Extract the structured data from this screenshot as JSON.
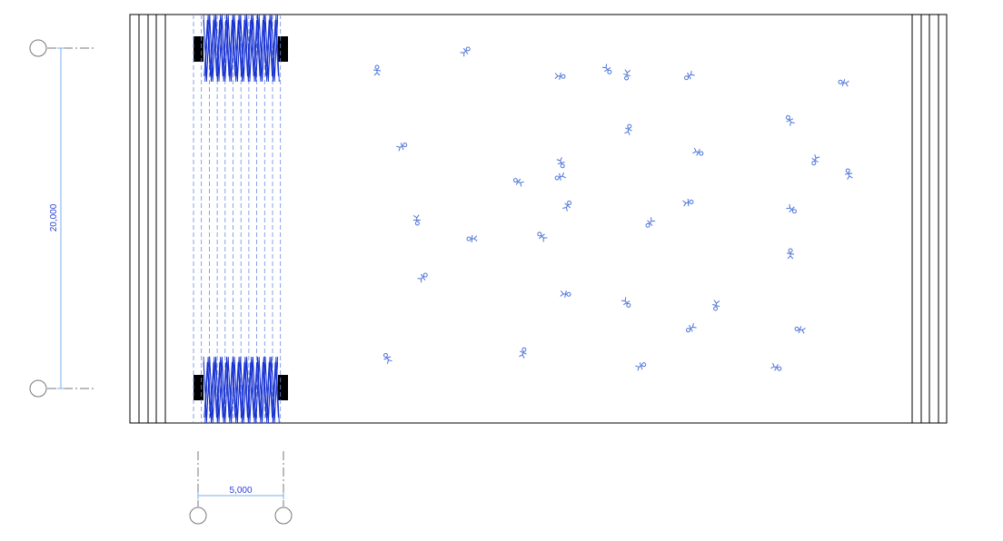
{
  "dimensions": {
    "vertical": "20,000",
    "horizontal": "5,000"
  }
}
